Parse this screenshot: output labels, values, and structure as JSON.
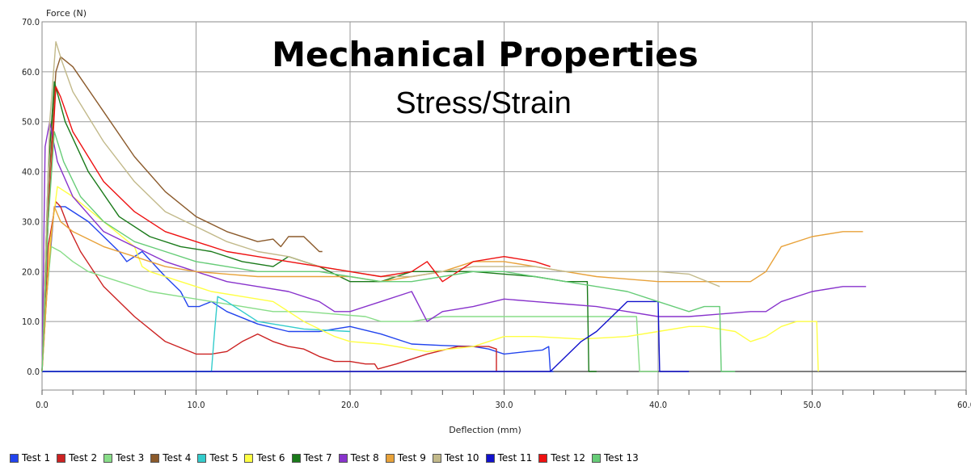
{
  "chart_data": {
    "type": "line",
    "title": "Mechanical Properties",
    "subtitle": "Stress/Strain",
    "xlabel": "Deflection (mm)",
    "ylabel": "Force (N)",
    "xlim": [
      0,
      60
    ],
    "ylim": [
      -4,
      70
    ],
    "xticks": [
      0,
      10,
      20,
      30,
      40,
      50,
      60
    ],
    "yticks": [
      0,
      10,
      20,
      30,
      40,
      50,
      60,
      70
    ],
    "xtick_labels": [
      "0.0",
      "10.0",
      "20.0",
      "30.0",
      "40.0",
      "50.0",
      "60.0"
    ],
    "ytick_labels": [
      "0.0",
      "10.0",
      "20.0",
      "30.0",
      "40.0",
      "50.0",
      "60.0",
      "70.0"
    ],
    "grid": true,
    "legend_position": "bottom",
    "series": [
      {
        "name": "Test 1",
        "color": "#2244ee",
        "x": [
          0,
          0.3,
          0.8,
          1.5,
          3,
          5,
          5.5,
          6.5,
          8,
          9,
          9.5,
          10.2,
          11,
          12,
          14,
          16,
          18,
          20,
          22,
          24,
          26,
          28,
          29,
          30,
          31.5,
          32.5,
          32.9,
          33,
          33.2
        ],
        "y": [
          0,
          15,
          33,
          33,
          30,
          24,
          22,
          24,
          19,
          16,
          13,
          13,
          14,
          12,
          9.5,
          8,
          8,
          9,
          7.5,
          5.5,
          5.2,
          5,
          4.5,
          3.5,
          4,
          4.3,
          5,
          0,
          0
        ]
      },
      {
        "name": "Test 2",
        "color": "#cc2222",
        "x": [
          0,
          0.4,
          0.9,
          1.2,
          1.7,
          2.5,
          4,
          6,
          8,
          10,
          11,
          12,
          13,
          14,
          15,
          16,
          17,
          18,
          19,
          20,
          21,
          21.6,
          21.8,
          23,
          25,
          27,
          29,
          29.5,
          29.5
        ],
        "y": [
          0,
          25,
          34,
          33,
          29,
          24,
          17,
          11,
          6,
          3.5,
          3.5,
          4,
          6,
          7.5,
          6,
          5,
          4.5,
          3,
          2,
          2,
          1.5,
          1.5,
          0.5,
          1.5,
          3.5,
          5,
          5,
          4.5,
          0
        ]
      },
      {
        "name": "Test 3",
        "color": "#88dd88",
        "x": [
          0,
          0.3,
          0.6,
          1.2,
          2,
          3,
          5,
          7,
          9,
          11,
          13,
          15,
          17,
          19,
          21,
          22,
          24,
          26,
          28,
          30,
          32,
          34,
          36,
          37,
          38,
          38.6,
          38.8,
          40
        ],
        "y": [
          0,
          15,
          25,
          24,
          22,
          20,
          18,
          16,
          15,
          14,
          13,
          12,
          12,
          11.5,
          11,
          10,
          10,
          11,
          11,
          11,
          11,
          11,
          11,
          11,
          11,
          11,
          0,
          0
        ]
      },
      {
        "name": "Test 4",
        "color": "#8b5a2b",
        "x": [
          0,
          0.5,
          0.9,
          1.2,
          2,
          4,
          6,
          8,
          10,
          12,
          14,
          15,
          15.5,
          16,
          17,
          18,
          18.2
        ],
        "y": [
          0,
          40,
          60,
          63,
          61,
          52,
          43,
          36,
          31,
          28,
          26,
          26.5,
          25,
          27,
          27,
          24,
          24
        ]
      },
      {
        "name": "Test 5",
        "color": "#33cccc",
        "x": [
          0,
          10.8,
          11,
          11.2,
          11.4,
          12,
          14,
          17,
          20
        ],
        "y": [
          0,
          0,
          0,
          8,
          15,
          14,
          10,
          8.5,
          8
        ]
      },
      {
        "name": "Test 6",
        "color": "#ffff44",
        "x": [
          0,
          0.5,
          1,
          2,
          4,
          6,
          6.5,
          7,
          9,
          11,
          13,
          15,
          17,
          19,
          20,
          22,
          25,
          28,
          30,
          32,
          35,
          38,
          40,
          42,
          43,
          45,
          46,
          47,
          48,
          49,
          50,
          50.3,
          50.4
        ],
        "y": [
          0,
          25,
          37,
          35,
          30,
          25,
          21,
          20,
          18,
          16,
          15,
          14,
          10,
          7,
          6,
          5.5,
          4,
          5,
          7,
          7,
          6.5,
          7,
          8,
          9,
          9,
          8,
          6,
          7,
          9,
          10,
          10,
          10,
          0
        ]
      },
      {
        "name": "Test 7",
        "color": "#1a7a1a",
        "x": [
          0,
          0.4,
          0.8,
          1.5,
          3,
          5,
          7,
          9,
          11,
          13,
          15,
          16,
          17,
          18,
          20,
          22,
          24,
          26,
          28,
          30,
          32,
          34,
          35,
          35.4,
          35.5,
          36
        ],
        "y": [
          0,
          40,
          58,
          50,
          40,
          31,
          27,
          25,
          24,
          22,
          21,
          23,
          22,
          21,
          18,
          18,
          20,
          20,
          20,
          19.5,
          19,
          18,
          18,
          18,
          0,
          0
        ]
      },
      {
        "name": "Test 8",
        "color": "#8833cc",
        "x": [
          0,
          0.2,
          0.5,
          1,
          2,
          4,
          6,
          8,
          10,
          12,
          14,
          16,
          18,
          19,
          20,
          22,
          24,
          25,
          26,
          28,
          30,
          32,
          34,
          36,
          38,
          40,
          42,
          44,
          46,
          47,
          48,
          50,
          52,
          53.5
        ],
        "y": [
          0,
          45,
          50,
          42,
          35,
          28,
          25,
          22,
          20,
          18,
          17,
          16,
          14,
          12,
          12,
          14,
          16,
          10,
          12,
          13,
          14.5,
          14,
          13.5,
          13,
          12,
          11,
          11,
          11.5,
          12,
          12,
          14,
          16,
          17,
          17
        ]
      },
      {
        "name": "Test 9",
        "color": "#e8a23a",
        "x": [
          0,
          0.4,
          0.8,
          1.2,
          2,
          4,
          6,
          8,
          10,
          12,
          14,
          16,
          18,
          20,
          22,
          24,
          26,
          28,
          30,
          32,
          34,
          36,
          38,
          40,
          42,
          44,
          46,
          47,
          48,
          50,
          52,
          53.3
        ],
        "y": [
          0,
          20,
          33,
          30,
          28,
          25,
          23,
          21,
          20,
          19.5,
          19,
          19,
          19,
          19,
          18,
          19,
          20,
          22,
          22,
          21,
          20,
          19,
          18.5,
          18,
          18,
          18,
          18,
          20,
          25,
          27,
          28,
          28
        ]
      },
      {
        "name": "Test 10",
        "color": "#c2b98a",
        "x": [
          0,
          0.5,
          0.9,
          1.3,
          2,
          4,
          6,
          8,
          10,
          12,
          14,
          16,
          18,
          20,
          22,
          24,
          26,
          28,
          30,
          32,
          34,
          36,
          38,
          40,
          42,
          44
        ],
        "y": [
          0,
          50,
          66,
          62,
          56,
          46,
          38,
          32,
          29,
          26,
          24,
          23,
          21,
          20,
          19,
          19,
          20,
          21,
          21,
          21,
          20,
          20,
          20,
          20,
          19.5,
          17
        ]
      },
      {
        "name": "Test 11",
        "color": "#1111cc",
        "x": [
          0,
          10,
          20,
          30,
          33,
          35,
          36,
          37,
          38,
          39.5,
          40,
          40.1,
          42
        ],
        "y": [
          0,
          0,
          0,
          0,
          0,
          6,
          8,
          11,
          14,
          14,
          14,
          0,
          0
        ]
      },
      {
        "name": "Test 12",
        "color": "#ee1111",
        "x": [
          0,
          0.4,
          0.9,
          1.2,
          2,
          4,
          6,
          8,
          10,
          12,
          14,
          16,
          18,
          20,
          22,
          24,
          25,
          26,
          27,
          28,
          30,
          32,
          33
        ],
        "y": [
          0,
          30,
          57,
          55,
          48,
          38,
          32,
          28,
          26,
          24,
          23,
          22,
          21,
          20,
          19,
          20,
          22,
          18,
          20,
          22,
          23,
          22,
          21
        ]
      },
      {
        "name": "Test 13",
        "color": "#66cc77",
        "x": [
          0,
          0.4,
          0.8,
          1.4,
          2.5,
          4,
          6,
          8,
          10,
          12,
          14,
          16,
          18,
          20,
          22,
          24,
          26,
          28,
          30,
          32,
          34,
          36,
          38,
          40,
          42,
          43,
          44,
          44.1,
          45
        ],
        "y": [
          0,
          30,
          48,
          42,
          35,
          30,
          26,
          24,
          22,
          21,
          20,
          20,
          20,
          19,
          18,
          18,
          19,
          20,
          20,
          19,
          18,
          17,
          16,
          14,
          12,
          13,
          13,
          0,
          0
        ]
      }
    ]
  }
}
